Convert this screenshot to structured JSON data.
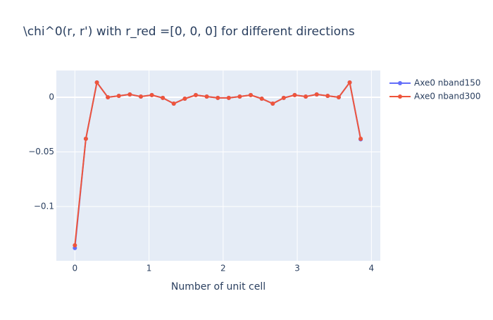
{
  "chart_data": {
    "type": "line",
    "title": "\\chi^0(r, r') with r_red =[0, 0, 0] for different directions",
    "xlabel": "Number of unit cell",
    "x": [
      0,
      0.148,
      0.297,
      0.445,
      0.593,
      0.741,
      0.89,
      1.038,
      1.186,
      1.334,
      1.483,
      1.631,
      1.779,
      1.928,
      2.076,
      2.224,
      2.372,
      2.521,
      2.669,
      2.817,
      2.965,
      3.114,
      3.262,
      3.41,
      3.559,
      3.707,
      3.855
    ],
    "series": [
      {
        "name": "Axe0 nband150",
        "color": "#636efa",
        "values": [
          -0.138,
          -0.038,
          0.0135,
          0,
          0.0013,
          0.0026,
          0.0006,
          0.002,
          -0.0006,
          -0.0058,
          -0.0013,
          0.002,
          0.0006,
          -0.0006,
          -0.0006,
          0.0006,
          0.002,
          -0.0013,
          -0.0058,
          -0.0006,
          0.002,
          0.0006,
          0.0026,
          0.0013,
          0,
          0.0135,
          -0.0385
        ]
      },
      {
        "name": "Axe0 nband300",
        "color": "#EF553B",
        "values": [
          -0.1355,
          -0.038,
          0.0135,
          0,
          0.0013,
          0.0026,
          0.0006,
          0.002,
          -0.0006,
          -0.0058,
          -0.0013,
          0.002,
          0.0006,
          -0.0006,
          -0.0006,
          0.0006,
          0.002,
          -0.0013,
          -0.0058,
          -0.0006,
          0.002,
          0.0006,
          0.0026,
          0.0013,
          0,
          0.0135,
          -0.038
        ]
      }
    ],
    "xlim": [
      -0.25,
      4.12
    ],
    "xticks": [
      0,
      1,
      2,
      3,
      4
    ],
    "ylim": [
      -0.1497,
      0.0245
    ],
    "yticks": [
      {
        "value": -0.1,
        "label": "−0.1"
      },
      {
        "value": -0.05,
        "label": "−0.05"
      },
      0
    ],
    "grid": true,
    "legend": "right"
  }
}
